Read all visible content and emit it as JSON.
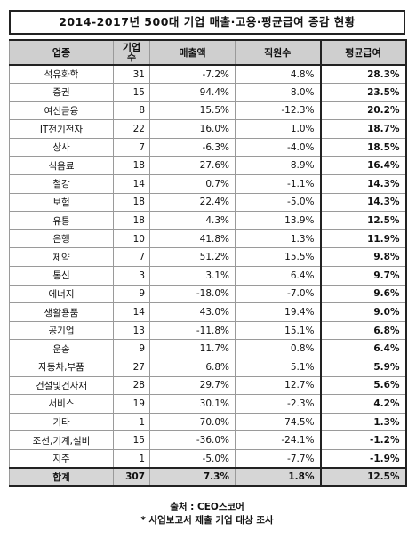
{
  "title": "2014-2017년 500대 기업 매출·고용·평균급여 증감 현황",
  "headers": {
    "industry": "업종",
    "company_count": "기업\n수",
    "revenue": "매출액",
    "employees": "직원수",
    "avg_salary": "평균급여"
  },
  "rows": [
    {
      "industry": "석유화학",
      "count": "31",
      "revenue": "-7.2%",
      "employees": "4.8%",
      "avg_salary": "28.3%"
    },
    {
      "industry": "증권",
      "count": "15",
      "revenue": "94.4%",
      "employees": "8.0%",
      "avg_salary": "23.5%"
    },
    {
      "industry": "여신금융",
      "count": "8",
      "revenue": "15.5%",
      "employees": "-12.3%",
      "avg_salary": "20.2%"
    },
    {
      "industry": "IT전기전자",
      "count": "22",
      "revenue": "16.0%",
      "employees": "1.0%",
      "avg_salary": "18.7%"
    },
    {
      "industry": "상사",
      "count": "7",
      "revenue": "-6.3%",
      "employees": "-4.0%",
      "avg_salary": "18.5%"
    },
    {
      "industry": "식음료",
      "count": "18",
      "revenue": "27.6%",
      "employees": "8.9%",
      "avg_salary": "16.4%"
    },
    {
      "industry": "철강",
      "count": "14",
      "revenue": "0.7%",
      "employees": "-1.1%",
      "avg_salary": "14.3%"
    },
    {
      "industry": "보험",
      "count": "18",
      "revenue": "22.4%",
      "employees": "-5.0%",
      "avg_salary": "14.3%"
    },
    {
      "industry": "유통",
      "count": "18",
      "revenue": "4.3%",
      "employees": "13.9%",
      "avg_salary": "12.5%"
    },
    {
      "industry": "은행",
      "count": "10",
      "revenue": "41.8%",
      "employees": "1.3%",
      "avg_salary": "11.9%"
    },
    {
      "industry": "제약",
      "count": "7",
      "revenue": "51.2%",
      "employees": "15.5%",
      "avg_salary": "9.8%"
    },
    {
      "industry": "통신",
      "count": "3",
      "revenue": "3.1%",
      "employees": "6.4%",
      "avg_salary": "9.7%"
    },
    {
      "industry": "에너지",
      "count": "9",
      "revenue": "-18.0%",
      "employees": "-7.0%",
      "avg_salary": "9.6%"
    },
    {
      "industry": "생활용품",
      "count": "14",
      "revenue": "43.0%",
      "employees": "19.4%",
      "avg_salary": "9.0%"
    },
    {
      "industry": "공기업",
      "count": "13",
      "revenue": "-11.8%",
      "employees": "15.1%",
      "avg_salary": "6.8%"
    },
    {
      "industry": "운송",
      "count": "9",
      "revenue": "11.7%",
      "employees": "0.8%",
      "avg_salary": "6.4%"
    },
    {
      "industry": "자동차,부품",
      "count": "27",
      "revenue": "6.8%",
      "employees": "5.1%",
      "avg_salary": "5.9%"
    },
    {
      "industry": "건설및건자재",
      "count": "28",
      "revenue": "29.7%",
      "employees": "12.7%",
      "avg_salary": "5.6%"
    },
    {
      "industry": "서비스",
      "count": "19",
      "revenue": "30.1%",
      "employees": "-2.3%",
      "avg_salary": "4.2%"
    },
    {
      "industry": "기타",
      "count": "1",
      "revenue": "70.0%",
      "employees": "74.5%",
      "avg_salary": "1.3%"
    },
    {
      "industry": "조선,기계,설비",
      "count": "15",
      "revenue": "-36.0%",
      "employees": "-24.1%",
      "avg_salary": "-1.2%"
    },
    {
      "industry": "지주",
      "count": "1",
      "revenue": "-5.0%",
      "employees": "-7.7%",
      "avg_salary": "-1.9%"
    }
  ],
  "total": {
    "industry": "합계",
    "count": "307",
    "revenue": "7.3%",
    "employees": "1.8%",
    "avg_salary": "12.5%"
  },
  "source": "출처 : CEO스코어",
  "note": "* 사업보고서 제출 기업 대상 조사"
}
